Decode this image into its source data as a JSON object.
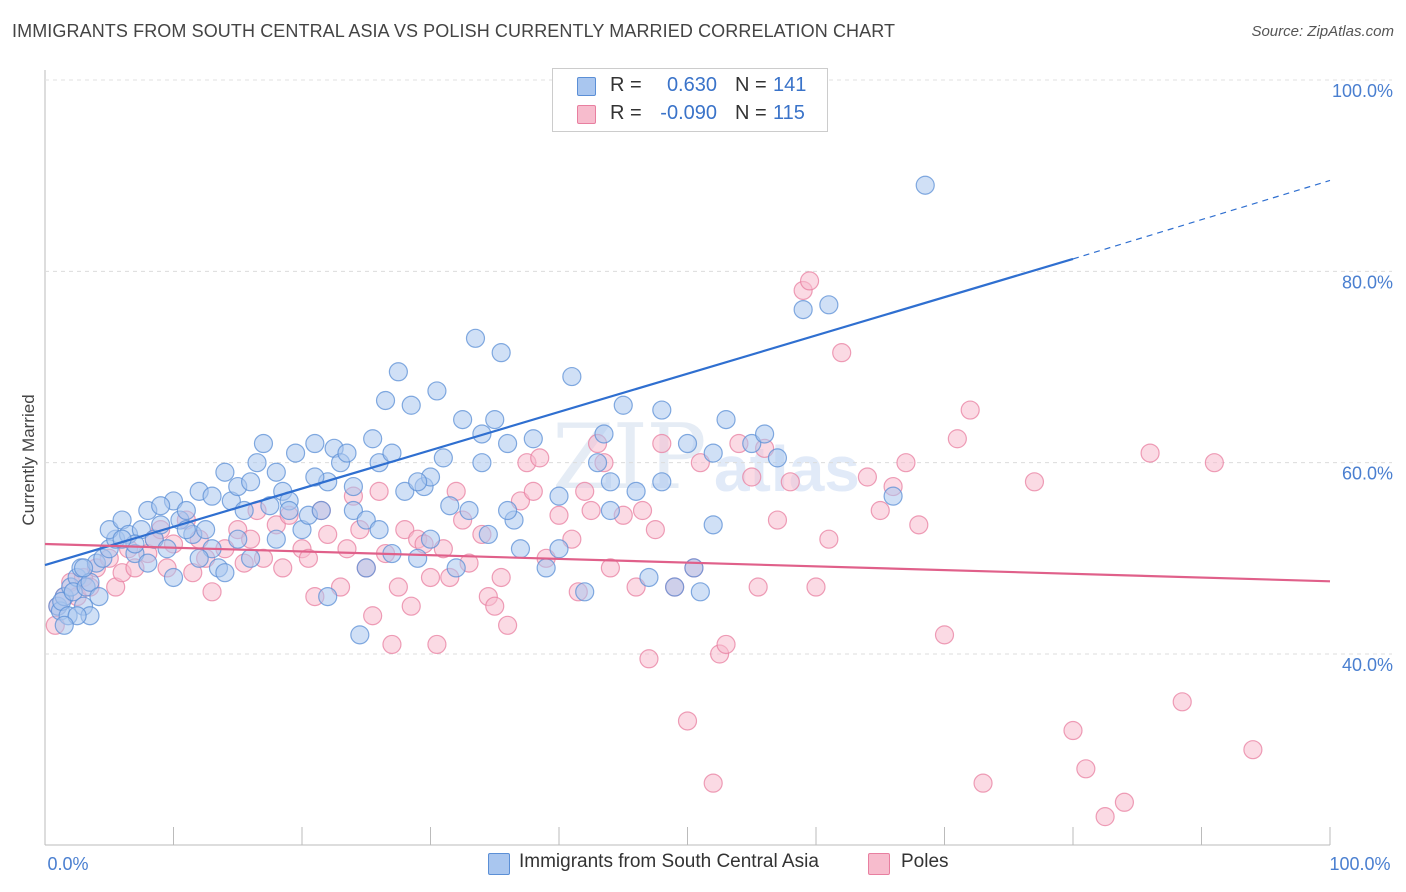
{
  "header": {
    "title": "IMMIGRANTS FROM SOUTH CENTRAL ASIA VS POLISH CURRENTLY MARRIED CORRELATION CHART",
    "source": "Source: ZipAtlas.com"
  },
  "watermark": {
    "part1": "ZIP",
    "part2": "atlas"
  },
  "legend": {
    "rows": [
      {
        "r_label": "R =",
        "r_value": "0.630",
        "n_label": "N =",
        "n_value": "141",
        "color": "#5b8fd6"
      },
      {
        "r_label": "R =",
        "r_value": "-0.090",
        "n_label": "N =",
        "n_value": "115",
        "color": "#e87fa0"
      }
    ]
  },
  "bottom_legend": {
    "items": [
      {
        "label": "Immigrants from South Central Asia",
        "color": "#a9c6ef"
      },
      {
        "label": "Poles",
        "color": "#f7bccd"
      }
    ]
  },
  "chart_data": {
    "type": "scatter",
    "title": "IMMIGRANTS FROM SOUTH CENTRAL ASIA VS POLISH CURRENTLY MARRIED CORRELATION CHART",
    "xlabel": "",
    "ylabel": "Currently Married",
    "xlim": [
      0,
      100
    ],
    "ylim": [
      20,
      100
    ],
    "x_tick_labels": [
      "0.0%",
      "100.0%"
    ],
    "y_ticks": [
      40,
      60,
      80,
      100
    ],
    "y_tick_labels": [
      "40.0%",
      "60.0%",
      "80.0%",
      "100.0%"
    ],
    "grid": true,
    "legend_position": "top-center",
    "series": [
      {
        "name": "Immigrants from South Central Asia",
        "color": "#5b8fd6",
        "fill": "#a9c6ef",
        "trend": {
          "x0": 0,
          "y0": 49.3,
          "x1": 80,
          "y1": 81.3,
          "dash_to_x": 100,
          "dash_to_y": 89.5
        },
        "points": [
          [
            1,
            45
          ],
          [
            1.2,
            44.5
          ],
          [
            1.5,
            46
          ],
          [
            1.3,
            45.5
          ],
          [
            2,
            47
          ],
          [
            2.5,
            48
          ],
          [
            1.8,
            44
          ],
          [
            2.2,
            46.5
          ],
          [
            3,
            45
          ],
          [
            2.8,
            49
          ],
          [
            3.5,
            44
          ],
          [
            3.2,
            47
          ],
          [
            4,
            49.5
          ],
          [
            4.5,
            50
          ],
          [
            5,
            51
          ],
          [
            5.5,
            52
          ],
          [
            5,
            53
          ],
          [
            6,
            54
          ],
          [
            6.5,
            52.5
          ],
          [
            7,
            50.5
          ],
          [
            7.5,
            53
          ],
          [
            8,
            55
          ],
          [
            8.5,
            52
          ],
          [
            9,
            53.5
          ],
          [
            9.5,
            51
          ],
          [
            10,
            56
          ],
          [
            10.5,
            54
          ],
          [
            11,
            55
          ],
          [
            11.5,
            52.5
          ],
          [
            12,
            57
          ],
          [
            12.5,
            53
          ],
          [
            13,
            56.5
          ],
          [
            13.5,
            49
          ],
          [
            14,
            48.5
          ],
          [
            14.5,
            56
          ],
          [
            15,
            57.5
          ],
          [
            15.5,
            55
          ],
          [
            16,
            58
          ],
          [
            16.5,
            60
          ],
          [
            17,
            62
          ],
          [
            17.5,
            55.5
          ],
          [
            18,
            59
          ],
          [
            18.5,
            57
          ],
          [
            19,
            56
          ],
          [
            19.5,
            61
          ],
          [
            20,
            53
          ],
          [
            20.5,
            54.5
          ],
          [
            21,
            62
          ],
          [
            21.5,
            55
          ],
          [
            22,
            58
          ],
          [
            22.5,
            61.5
          ],
          [
            23,
            60
          ],
          [
            23.5,
            61
          ],
          [
            24,
            55
          ],
          [
            24.5,
            42
          ],
          [
            25,
            54
          ],
          [
            25.5,
            62.5
          ],
          [
            26,
            60
          ],
          [
            26.5,
            66.5
          ],
          [
            27,
            50.5
          ],
          [
            27.5,
            69.5
          ],
          [
            28,
            57
          ],
          [
            28.5,
            66
          ],
          [
            29,
            50
          ],
          [
            29.5,
            57.5
          ],
          [
            30,
            58.5
          ],
          [
            30.5,
            67.5
          ],
          [
            31,
            60.5
          ],
          [
            31.5,
            55.5
          ],
          [
            32,
            49
          ],
          [
            32.5,
            64.5
          ],
          [
            33,
            55
          ],
          [
            33.5,
            73
          ],
          [
            34,
            63
          ],
          [
            34.5,
            52.5
          ],
          [
            35,
            64.5
          ],
          [
            35.5,
            71.5
          ],
          [
            36,
            62
          ],
          [
            36.5,
            54
          ],
          [
            37,
            51
          ],
          [
            38,
            62.5
          ],
          [
            39,
            49
          ],
          [
            40,
            56.5
          ],
          [
            41,
            69
          ],
          [
            42,
            46.5
          ],
          [
            43,
            60
          ],
          [
            43.5,
            63
          ],
          [
            44,
            58
          ],
          [
            45,
            66
          ],
          [
            46,
            57
          ],
          [
            47,
            48
          ],
          [
            48,
            65.5
          ],
          [
            49,
            47
          ],
          [
            50,
            62
          ],
          [
            50.5,
            49
          ],
          [
            51,
            46.5
          ],
          [
            52,
            53.5
          ],
          [
            53,
            64.5
          ],
          [
            55,
            62
          ],
          [
            57,
            60.5
          ],
          [
            59,
            76
          ],
          [
            61,
            76.5
          ],
          [
            66,
            56.5
          ],
          [
            68.5,
            89
          ],
          [
            9,
            55.5
          ],
          [
            11,
            53
          ],
          [
            7,
            51.5
          ],
          [
            13,
            51
          ],
          [
            15,
            52
          ],
          [
            3.5,
            47.5
          ],
          [
            4.2,
            46
          ],
          [
            6,
            52
          ],
          [
            2.5,
            44
          ],
          [
            1.5,
            43
          ],
          [
            3,
            49
          ],
          [
            18,
            52
          ],
          [
            24,
            57.5
          ],
          [
            21,
            58.5
          ],
          [
            27,
            61
          ],
          [
            29,
            58
          ],
          [
            14,
            59
          ],
          [
            16,
            50
          ],
          [
            19,
            55
          ],
          [
            25,
            49
          ],
          [
            12,
            50
          ],
          [
            8,
            49.5
          ],
          [
            10,
            48
          ],
          [
            22,
            46
          ],
          [
            26,
            53
          ],
          [
            30,
            52
          ],
          [
            34,
            60
          ],
          [
            36,
            55
          ],
          [
            40,
            51
          ],
          [
            44,
            55
          ],
          [
            48,
            58
          ],
          [
            52,
            61
          ],
          [
            56,
            63
          ]
        ]
      },
      {
        "name": "Poles",
        "color": "#e87fa0",
        "fill": "#f7bccd",
        "trend": {
          "x0": 0,
          "y0": 51.5,
          "x1": 100,
          "y1": 47.6
        },
        "points": [
          [
            0.8,
            43
          ],
          [
            1,
            45
          ],
          [
            1.5,
            46
          ],
          [
            2,
            47.5
          ],
          [
            2.5,
            46
          ],
          [
            3,
            48
          ],
          [
            3.5,
            47
          ],
          [
            4,
            49
          ],
          [
            5,
            50
          ],
          [
            5.5,
            47
          ],
          [
            6,
            48.5
          ],
          [
            6.5,
            51
          ],
          [
            7,
            49
          ],
          [
            8,
            50.5
          ],
          [
            8.5,
            52
          ],
          [
            9,
            53
          ],
          [
            9.5,
            49
          ],
          [
            10,
            51.5
          ],
          [
            11,
            54
          ],
          [
            11.5,
            48.5
          ],
          [
            12,
            52
          ],
          [
            12.5,
            50
          ],
          [
            13,
            46.5
          ],
          [
            14,
            51
          ],
          [
            15,
            53
          ],
          [
            15.5,
            49.5
          ],
          [
            16,
            52
          ],
          [
            16.5,
            55
          ],
          [
            17,
            50
          ],
          [
            18,
            53.5
          ],
          [
            18.5,
            49
          ],
          [
            19,
            54.5
          ],
          [
            20,
            51
          ],
          [
            20.5,
            50
          ],
          [
            21,
            46
          ],
          [
            21.5,
            55
          ],
          [
            22,
            52.5
          ],
          [
            23,
            47
          ],
          [
            23.5,
            51
          ],
          [
            24,
            56.5
          ],
          [
            24.5,
            53
          ],
          [
            25,
            49
          ],
          [
            25.5,
            44
          ],
          [
            26,
            57
          ],
          [
            26.5,
            50.5
          ],
          [
            27,
            41
          ],
          [
            27.5,
            47
          ],
          [
            28,
            53
          ],
          [
            28.5,
            45
          ],
          [
            29,
            52
          ],
          [
            29.5,
            51.5
          ],
          [
            30,
            48
          ],
          [
            30.5,
            41
          ],
          [
            31,
            51
          ],
          [
            31.5,
            48
          ],
          [
            32,
            57
          ],
          [
            32.5,
            54
          ],
          [
            33,
            49.5
          ],
          [
            34,
            52.5
          ],
          [
            34.5,
            46
          ],
          [
            35,
            45
          ],
          [
            35.5,
            48
          ],
          [
            36,
            43
          ],
          [
            37,
            56
          ],
          [
            37.5,
            60
          ],
          [
            38,
            57
          ],
          [
            38.5,
            60.5
          ],
          [
            39,
            50
          ],
          [
            40,
            54.5
          ],
          [
            41,
            52
          ],
          [
            41.5,
            46.5
          ],
          [
            42,
            57
          ],
          [
            42.5,
            55
          ],
          [
            43,
            62
          ],
          [
            43.5,
            60
          ],
          [
            44,
            49
          ],
          [
            45,
            54.5
          ],
          [
            46,
            47
          ],
          [
            46.5,
            55
          ],
          [
            47,
            39.5
          ],
          [
            47.5,
            53
          ],
          [
            48,
            62
          ],
          [
            49,
            47
          ],
          [
            50,
            33
          ],
          [
            50.5,
            49
          ],
          [
            51,
            60
          ],
          [
            52,
            26.5
          ],
          [
            52.5,
            40
          ],
          [
            53,
            41
          ],
          [
            54,
            62
          ],
          [
            55,
            58.5
          ],
          [
            55.5,
            47
          ],
          [
            56,
            61.5
          ],
          [
            57,
            54
          ],
          [
            58,
            58
          ],
          [
            59,
            78
          ],
          [
            59.5,
            79
          ],
          [
            60,
            47
          ],
          [
            61,
            52
          ],
          [
            62,
            71.5
          ],
          [
            64,
            58.5
          ],
          [
            65,
            55
          ],
          [
            66,
            57.5
          ],
          [
            67,
            60
          ],
          [
            68,
            53.5
          ],
          [
            70,
            42
          ],
          [
            71,
            62.5
          ],
          [
            72,
            65.5
          ],
          [
            73,
            26.5
          ],
          [
            77,
            58
          ],
          [
            80,
            32
          ],
          [
            81,
            28
          ],
          [
            82.5,
            23
          ],
          [
            84,
            24.5
          ],
          [
            86,
            61
          ],
          [
            88.5,
            35
          ],
          [
            91,
            60
          ],
          [
            94,
            30
          ]
        ]
      }
    ]
  }
}
